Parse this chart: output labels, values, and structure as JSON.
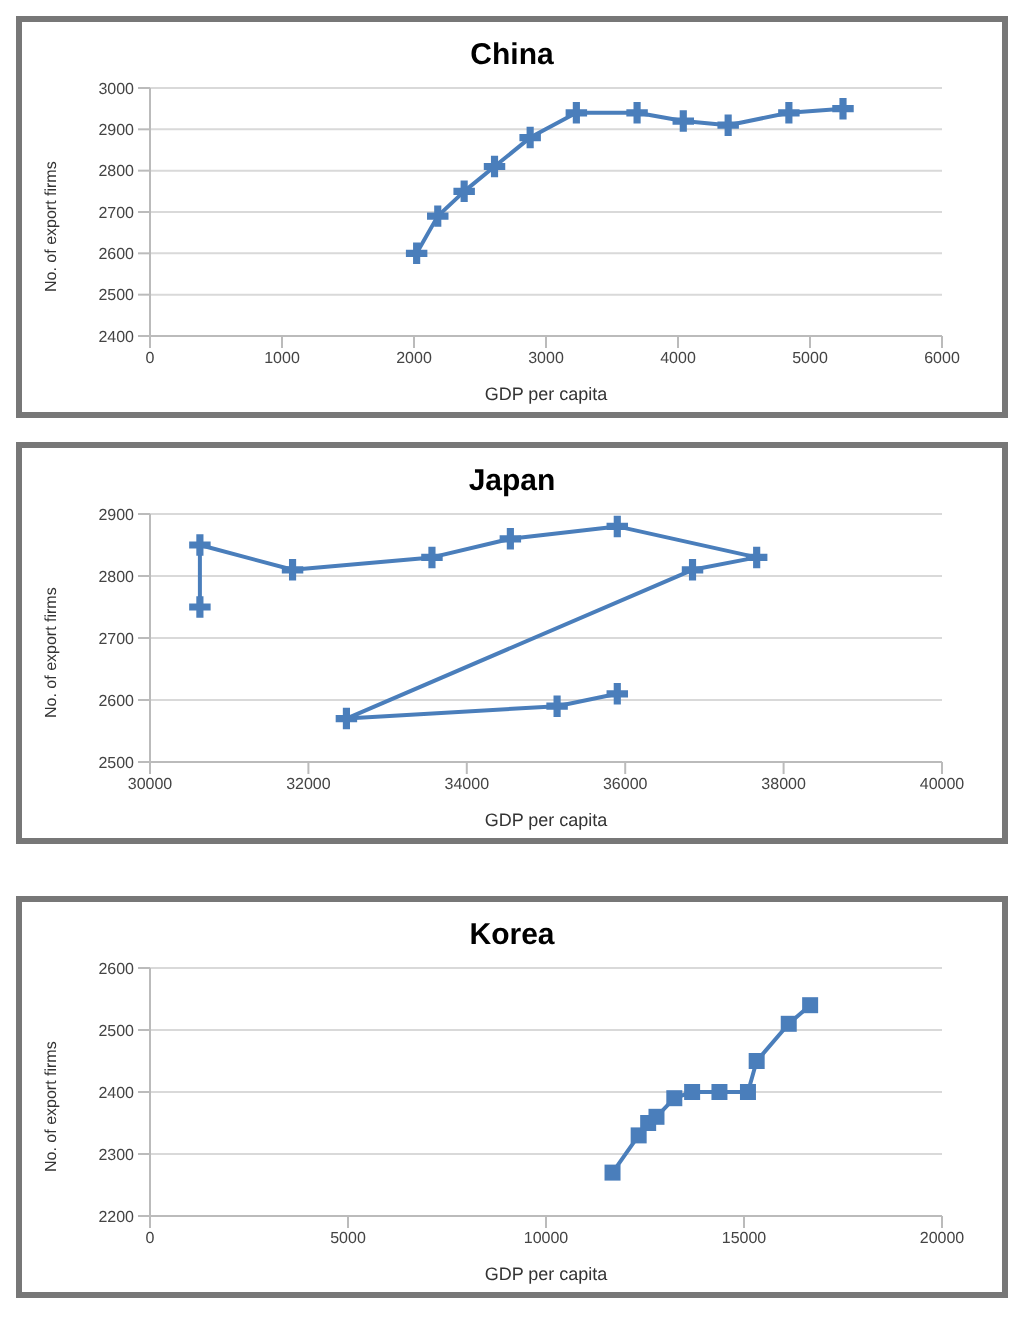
{
  "chart_data": [
    {
      "type": "line",
      "title": "China",
      "xlabel": "GDP per capita",
      "ylabel": "No. of export firms",
      "marker": "cross",
      "line_style": "solid",
      "grid": "y",
      "legend": false,
      "series": [
        {
          "color": "#4a7ebb",
          "x": [
            2020,
            2180,
            2380,
            2610,
            2880,
            3230,
            3690,
            4040,
            4380,
            4840,
            5250
          ],
          "values": [
            2600,
            2690,
            2750,
            2810,
            2880,
            2940,
            2940,
            2920,
            2910,
            2940,
            2950
          ]
        }
      ],
      "xlim": [
        0,
        6000
      ],
      "xticks": [
        0,
        1000,
        2000,
        3000,
        4000,
        5000,
        6000
      ],
      "ylim": [
        2400,
        3000
      ],
      "yticks": [
        2400,
        2500,
        2600,
        2700,
        2800,
        2900,
        3000
      ]
    },
    {
      "type": "line",
      "title": "Japan",
      "xlabel": "GDP per capita",
      "ylabel": "No. of export firms",
      "marker": "cross",
      "line_style": "solid",
      "grid": "y",
      "legend": false,
      "series": [
        {
          "color": "#4a7ebb",
          "x": [
            30630,
            30630,
            31800,
            33560,
            34550,
            35900,
            37660,
            36850,
            32480,
            35140,
            35900
          ],
          "values": [
            2750,
            2850,
            2810,
            2830,
            2860,
            2880,
            2830,
            2810,
            2570,
            2590,
            2610
          ]
        }
      ],
      "xlim": [
        30000,
        40000
      ],
      "xticks": [
        30000,
        32000,
        34000,
        36000,
        38000,
        40000
      ],
      "ylim": [
        2500,
        2900
      ],
      "yticks": [
        2500,
        2600,
        2700,
        2800,
        2900
      ]
    },
    {
      "type": "line",
      "title": "Korea",
      "xlabel": "GDP per capita",
      "ylabel": "No. of export firms",
      "marker": "square",
      "line_style": "solid",
      "grid": "y",
      "legend": false,
      "series": [
        {
          "color": "#4a7ebb",
          "x": [
            11680,
            12340,
            12580,
            12790,
            13240,
            13690,
            14380,
            15100,
            15320,
            16130,
            16670
          ],
          "values": [
            2270,
            2330,
            2350,
            2360,
            2390,
            2400,
            2400,
            2400,
            2450,
            2510,
            2540
          ]
        }
      ],
      "xlim": [
        0,
        20000
      ],
      "xticks": [
        0,
        5000,
        10000,
        15000,
        20000
      ],
      "ylim": [
        2200,
        2600
      ],
      "yticks": [
        2200,
        2300,
        2400,
        2500,
        2600
      ]
    }
  ]
}
